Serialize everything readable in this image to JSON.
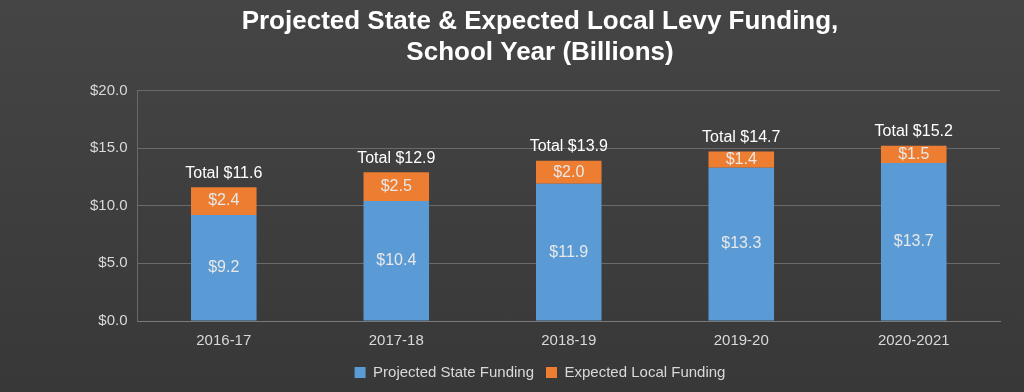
{
  "chart_data": {
    "type": "bar",
    "title": [
      "Projected State & Expected Local Levy Funding,",
      "School Year (Billions)"
    ],
    "categories": [
      "2016-17",
      "2017-18",
      "2018-19",
      "2019-20",
      "2020-2021"
    ],
    "series": [
      {
        "name": "Projected State Funding",
        "color": "#5b9bd5",
        "values": [
          9.2,
          10.4,
          11.9,
          13.3,
          13.7
        ],
        "value_labels": [
          "$9.2",
          "$10.4",
          "$11.9",
          "$13.3",
          "$13.7"
        ]
      },
      {
        "name": "Expected Local Funding",
        "color": "#ed7d31",
        "values": [
          2.4,
          2.5,
          2.0,
          1.4,
          1.5
        ],
        "value_labels": [
          "$2.4",
          "$2.5",
          "$2.0",
          "$1.4",
          "$1.5"
        ]
      }
    ],
    "ylim": [
      0,
      20
    ],
    "yticks": [
      {
        "value": 0,
        "label": "$0.0"
      },
      {
        "value": 5,
        "label": "$5.0"
      },
      {
        "value": 10,
        "label": "$10.0"
      },
      {
        "value": 15,
        "label": "$15.0"
      },
      {
        "value": 20,
        "label": "$20.0"
      }
    ],
    "grid": true,
    "stacked": true,
    "data_labels": true,
    "legend": "bottom",
    "annotations": [
      {
        "x": "2016-17",
        "y": 11.6,
        "text": "Total $11.6"
      },
      {
        "x": "2017-18",
        "y": 12.9,
        "text": "Total $12.9"
      },
      {
        "x": "2018-19",
        "y": 13.9,
        "text": "Total $13.9"
      },
      {
        "x": "2019-20",
        "y": 14.7,
        "text": "Total $14.7"
      },
      {
        "x": "2020-2021",
        "y": 15.2,
        "text": "Total $15.2"
      }
    ]
  }
}
